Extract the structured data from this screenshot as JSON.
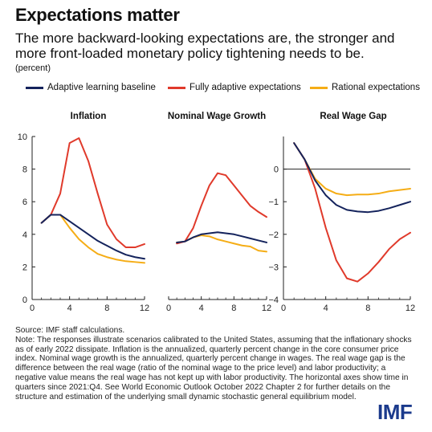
{
  "header": {
    "title": "Expectations matter",
    "subtitle": "The more backward-looking expectations are, the stronger and more front-loaded monetary policy tightening needs to be.",
    "unit": "(percent)"
  },
  "legend": [
    {
      "label": "Adaptive learning baseline",
      "color": "#14235c"
    },
    {
      "label": "Fully adaptive expectations",
      "color": "#e03a2b"
    },
    {
      "label": "Rational expectations",
      "color": "#f5ad16"
    }
  ],
  "chart_data": [
    {
      "type": "line",
      "title": "Inflation",
      "xlim": [
        0,
        12
      ],
      "ylim": [
        0,
        10
      ],
      "xticks": [
        0,
        4,
        8,
        12
      ],
      "yticks": [
        0,
        2,
        4,
        6,
        8,
        10
      ],
      "x": [
        1,
        2,
        3,
        4,
        5,
        6,
        7,
        8,
        9,
        10,
        11,
        12
      ],
      "series": [
        {
          "name": "Adaptive learning baseline",
          "color": "#14235c",
          "values": [
            4.7,
            5.2,
            5.2,
            4.8,
            4.4,
            4.0,
            3.6,
            3.3,
            3.0,
            2.75,
            2.6,
            2.5
          ]
        },
        {
          "name": "Fully adaptive expectations",
          "color": "#e03a2b",
          "values": [
            4.7,
            5.2,
            6.5,
            9.6,
            9.9,
            8.5,
            6.5,
            4.6,
            3.7,
            3.2,
            3.2,
            3.4
          ]
        },
        {
          "name": "Rational expectations",
          "color": "#f5ad16",
          "values": [
            4.7,
            5.2,
            5.2,
            4.4,
            3.7,
            3.2,
            2.8,
            2.6,
            2.45,
            2.35,
            2.3,
            2.25
          ]
        }
      ]
    },
    {
      "type": "line",
      "title": "Nominal Wage Growth",
      "xlim": [
        0,
        12
      ],
      "ylim": [
        2,
        10
      ],
      "xticks": [
        0,
        4,
        8,
        12
      ],
      "yticks": [],
      "x": [
        1,
        2,
        3,
        4,
        5,
        6,
        7,
        8,
        9,
        10,
        11,
        12
      ],
      "series": [
        {
          "name": "Adaptive learning baseline",
          "color": "#14235c",
          "values": [
            4.8,
            4.85,
            5.05,
            5.2,
            5.25,
            5.3,
            5.25,
            5.2,
            5.1,
            5.0,
            4.9,
            4.8
          ]
        },
        {
          "name": "Fully adaptive expectations",
          "color": "#e03a2b",
          "values": [
            4.75,
            4.85,
            5.5,
            6.6,
            7.6,
            8.2,
            8.1,
            7.6,
            7.1,
            6.6,
            6.3,
            6.05
          ]
        },
        {
          "name": "Rational expectations",
          "color": "#f5ad16",
          "values": [
            4.8,
            4.85,
            5.05,
            5.15,
            5.1,
            4.95,
            4.85,
            4.75,
            4.65,
            4.6,
            4.4,
            4.35
          ]
        }
      ]
    },
    {
      "type": "line",
      "title": "Real Wage Gap",
      "xlim": [
        0,
        12
      ],
      "ylim": [
        -4,
        1
      ],
      "xticks": [
        0,
        4,
        8,
        12
      ],
      "yticks": [
        -4,
        -3,
        -2,
        -1,
        0
      ],
      "x": [
        1,
        2,
        3,
        4,
        5,
        6,
        7,
        8,
        9,
        10,
        11,
        12
      ],
      "series": [
        {
          "name": "Adaptive learning baseline",
          "color": "#14235c",
          "values": [
            0.8,
            0.3,
            -0.35,
            -0.8,
            -1.1,
            -1.25,
            -1.3,
            -1.32,
            -1.28,
            -1.2,
            -1.1,
            -1.0
          ]
        },
        {
          "name": "Fully adaptive expectations",
          "color": "#e03a2b",
          "values": [
            0.8,
            0.3,
            -0.6,
            -1.8,
            -2.8,
            -3.35,
            -3.45,
            -3.2,
            -2.85,
            -2.45,
            -2.15,
            -1.95
          ]
        },
        {
          "name": "Rational expectations",
          "color": "#f5ad16",
          "values": [
            0.8,
            0.3,
            -0.3,
            -0.6,
            -0.75,
            -0.8,
            -0.78,
            -0.78,
            -0.75,
            -0.68,
            -0.64,
            -0.6
          ]
        }
      ]
    }
  ],
  "note": {
    "source": "Source: IMF staff calculations.",
    "text": "Note: The responses illustrate scenarios calibrated to the United States, assuming that the inflationary shocks as of early 2022 dissipate. Inflation is the annualized, quarterly percent change in the core consumer price index. Nominal wage growth is the annualized, quarterly percent change in wages. The real wage gap is the difference between the real wage (ratio of the nominal wage to the price level) and labor productivity; a negative value means the real wage has not kept up with labor productivity. The horizontal axes show time in quarters since 2021:Q4. See World Economic Outlook October 2022 Chapter 2 for further details on the structure and estimation of the underlying small dynamic stochastic general equilibrium model."
  },
  "logo": "IMF"
}
